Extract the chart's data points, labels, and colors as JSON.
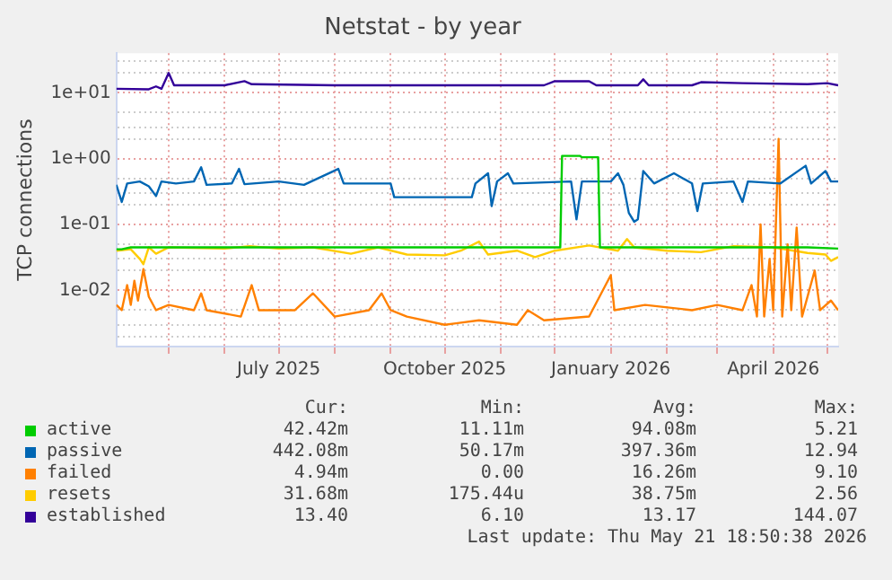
{
  "chart_data": {
    "type": "line",
    "title": "Netstat - by year",
    "ylabel": "TCP connections",
    "log": "y",
    "grid": true,
    "legend": "bottom",
    "marker": "none",
    "line_style": "solid",
    "xlim": [
      "2025-04-02",
      "2026-05-07"
    ],
    "ylim": [
      0.0014,
      40
    ],
    "xticks": [
      {
        "value": "2025-05-01",
        "label": null
      },
      {
        "value": "2025-06-01",
        "label": null
      },
      {
        "value": "2025-07-01",
        "label": "July 2025"
      },
      {
        "value": "2025-08-01",
        "label": null
      },
      {
        "value": "2025-09-01",
        "label": null
      },
      {
        "value": "2025-10-01",
        "label": "October 2025"
      },
      {
        "value": "2025-11-01",
        "label": null
      },
      {
        "value": "2025-12-01",
        "label": null
      },
      {
        "value": "2026-01-01",
        "label": "January 2026"
      },
      {
        "value": "2026-02-01",
        "label": null
      },
      {
        "value": "2026-03-01",
        "label": null
      },
      {
        "value": "2026-04-01",
        "label": "April 2026"
      },
      {
        "value": "2026-05-01",
        "label": null
      }
    ],
    "yticks": [
      {
        "value": 0.002,
        "label": null
      },
      {
        "value": 0.003,
        "label": null
      },
      {
        "value": 0.005,
        "label": null
      },
      {
        "value": 0.01,
        "label": "1e-02"
      },
      {
        "value": 0.02,
        "label": null
      },
      {
        "value": 0.03,
        "label": null
      },
      {
        "value": 0.05,
        "label": null
      },
      {
        "value": 0.1,
        "label": "1e-01"
      },
      {
        "value": 0.2,
        "label": null
      },
      {
        "value": 0.3,
        "label": null
      },
      {
        "value": 0.5,
        "label": null
      },
      {
        "value": 1,
        "label": "1e+00"
      },
      {
        "value": 2,
        "label": null
      },
      {
        "value": 3,
        "label": null
      },
      {
        "value": 5,
        "label": null
      },
      {
        "value": 10,
        "label": "1e+01"
      },
      {
        "value": 20,
        "label": null
      },
      {
        "value": 30,
        "label": null
      }
    ],
    "series": [
      {
        "name": "active",
        "color": "#00cc00",
        "x": [
          "2025-04-02",
          "2025-04-05",
          "2025-04-10",
          "2025-12-04",
          "2025-12-05",
          "2025-12-15",
          "2025-12-16",
          "2025-12-25",
          "2025-12-26",
          "2026-04-01",
          "2026-04-20",
          "2026-05-07"
        ],
        "values": [
          0.042,
          0.042,
          0.045,
          0.045,
          1.1,
          1.1,
          1.05,
          1.05,
          0.045,
          0.045,
          0.045,
          0.043
        ]
      },
      {
        "name": "passive",
        "color": "#0066b3",
        "x": [
          "2025-04-02",
          "2025-04-05",
          "2025-04-08",
          "2025-04-15",
          "2025-04-20",
          "2025-04-24",
          "2025-04-27",
          "2025-05-05",
          "2025-05-15",
          "2025-05-19",
          "2025-05-22",
          "2025-06-05",
          "2025-06-09",
          "2025-06-12",
          "2025-07-01",
          "2025-07-15",
          "2025-08-03",
          "2025-08-06",
          "2025-09-01",
          "2025-09-03",
          "2025-10-01",
          "2025-10-16",
          "2025-10-18",
          "2025-10-25",
          "2025-10-27",
          "2025-10-30",
          "2025-11-05",
          "2025-11-08",
          "2025-12-10",
          "2025-12-13",
          "2025-12-16",
          "2026-01-01",
          "2026-01-05",
          "2026-01-08",
          "2026-01-11",
          "2026-01-14",
          "2026-01-16",
          "2026-01-19",
          "2026-01-25",
          "2026-02-05",
          "2026-02-15",
          "2026-02-18",
          "2026-02-21",
          "2026-03-10",
          "2026-03-15",
          "2026-03-18",
          "2026-04-05",
          "2026-04-19",
          "2026-04-22",
          "2026-04-30",
          "2026-05-03",
          "2026-05-07"
        ],
        "values": [
          0.4,
          0.22,
          0.42,
          0.45,
          0.38,
          0.27,
          0.45,
          0.42,
          0.45,
          0.74,
          0.4,
          0.42,
          0.7,
          0.41,
          0.45,
          0.4,
          0.7,
          0.42,
          0.42,
          0.26,
          0.26,
          0.26,
          0.42,
          0.6,
          0.19,
          0.45,
          0.6,
          0.42,
          0.45,
          0.12,
          0.45,
          0.45,
          0.6,
          0.4,
          0.15,
          0.11,
          0.12,
          0.65,
          0.42,
          0.6,
          0.42,
          0.16,
          0.42,
          0.45,
          0.22,
          0.45,
          0.42,
          0.78,
          0.42,
          0.65,
          0.45,
          0.45
        ]
      },
      {
        "name": "failed",
        "color": "#ff8000",
        "x": [
          "2025-04-02",
          "2025-04-05",
          "2025-04-08",
          "2025-04-10",
          "2025-04-12",
          "2025-04-14",
          "2025-04-17",
          "2025-04-20",
          "2025-04-24",
          "2025-05-01",
          "2025-05-15",
          "2025-05-19",
          "2025-05-22",
          "2025-06-10",
          "2025-06-16",
          "2025-06-20",
          "2025-07-10",
          "2025-07-20",
          "2025-08-01",
          "2025-08-20",
          "2025-08-27",
          "2025-09-01",
          "2025-09-10",
          "2025-10-01",
          "2025-10-20",
          "2025-11-10",
          "2025-11-16",
          "2025-11-25",
          "2025-12-20",
          "2026-01-01",
          "2026-01-03",
          "2026-01-20",
          "2026-02-15",
          "2026-03-01",
          "2026-03-15",
          "2026-03-20",
          "2026-03-23",
          "2026-03-25",
          "2026-03-27",
          "2026-03-30",
          "2026-04-01",
          "2026-04-04",
          "2026-04-06",
          "2026-04-09",
          "2026-04-11",
          "2026-04-14",
          "2026-04-17",
          "2026-04-24",
          "2026-04-27",
          "2026-05-03",
          "2026-05-07"
        ],
        "values": [
          0.006,
          0.005,
          0.012,
          0.006,
          0.014,
          0.007,
          0.021,
          0.008,
          0.005,
          0.006,
          0.005,
          0.009,
          0.005,
          0.004,
          0.012,
          0.005,
          0.005,
          0.009,
          0.004,
          0.005,
          0.009,
          0.005,
          0.004,
          0.003,
          0.0035,
          0.003,
          0.005,
          0.0035,
          0.004,
          0.017,
          0.005,
          0.006,
          0.005,
          0.006,
          0.005,
          0.012,
          0.004,
          0.1,
          0.004,
          0.03,
          0.005,
          2.0,
          0.004,
          0.05,
          0.005,
          0.09,
          0.004,
          0.02,
          0.005,
          0.007,
          0.005
        ]
      },
      {
        "name": "resets",
        "color": "#ffcc00",
        "x": [
          "2025-04-02",
          "2025-04-10",
          "2025-04-15",
          "2025-04-17",
          "2025-04-20",
          "2025-04-24",
          "2025-05-01",
          "2025-06-01",
          "2025-06-15",
          "2025-07-01",
          "2025-07-20",
          "2025-08-10",
          "2025-08-25",
          "2025-09-10",
          "2025-10-01",
          "2025-10-10",
          "2025-10-20",
          "2025-10-25",
          "2025-11-10",
          "2025-11-20",
          "2025-12-01",
          "2025-12-20",
          "2026-01-05",
          "2026-01-10",
          "2026-01-14",
          "2026-02-01",
          "2026-02-20",
          "2026-03-10",
          "2026-04-01",
          "2026-04-20",
          "2026-04-30",
          "2026-05-03",
          "2026-05-07"
        ],
        "values": [
          0.04,
          0.042,
          0.03,
          0.025,
          0.045,
          0.036,
          0.045,
          0.043,
          0.047,
          0.043,
          0.045,
          0.036,
          0.045,
          0.035,
          0.034,
          0.04,
          0.055,
          0.035,
          0.04,
          0.032,
          0.04,
          0.048,
          0.04,
          0.06,
          0.045,
          0.04,
          0.038,
          0.047,
          0.045,
          0.037,
          0.035,
          0.028,
          0.032
        ]
      },
      {
        "name": "established",
        "color": "#330099",
        "x": [
          "2025-04-02",
          "2025-04-20",
          "2025-04-24",
          "2025-04-27",
          "2025-05-01",
          "2025-05-04",
          "2025-06-01",
          "2025-06-12",
          "2025-06-16",
          "2025-08-01",
          "2025-10-01",
          "2025-11-25",
          "2025-12-01",
          "2025-12-20",
          "2025-12-24",
          "2026-01-16",
          "2026-01-19",
          "2026-01-22",
          "2026-02-15",
          "2026-02-20",
          "2026-03-15",
          "2026-04-20",
          "2026-05-01",
          "2026-05-07"
        ],
        "values": [
          11.5,
          11.3,
          12.5,
          11.5,
          20,
          13,
          13,
          15,
          13.5,
          13,
          13,
          13,
          15,
          15,
          13,
          13,
          16,
          13,
          13,
          14.5,
          14,
          13.5,
          14,
          13
        ]
      }
    ],
    "annotations": [
      "Cur:",
      "Min:",
      "Avg:",
      "Max:",
      "42.42m",
      "11.11m",
      "94.08m",
      "5.21",
      "442.08m",
      "50.17m",
      "397.36m",
      "12.94",
      "4.94m",
      "0.00",
      "16.26m",
      "9.10",
      "31.68m",
      "175.44u",
      "38.75m",
      "2.56",
      "13.40",
      "6.10",
      "13.17",
      "144.07",
      "Last update: Thu May 21 18:50:38 2026"
    ]
  }
}
